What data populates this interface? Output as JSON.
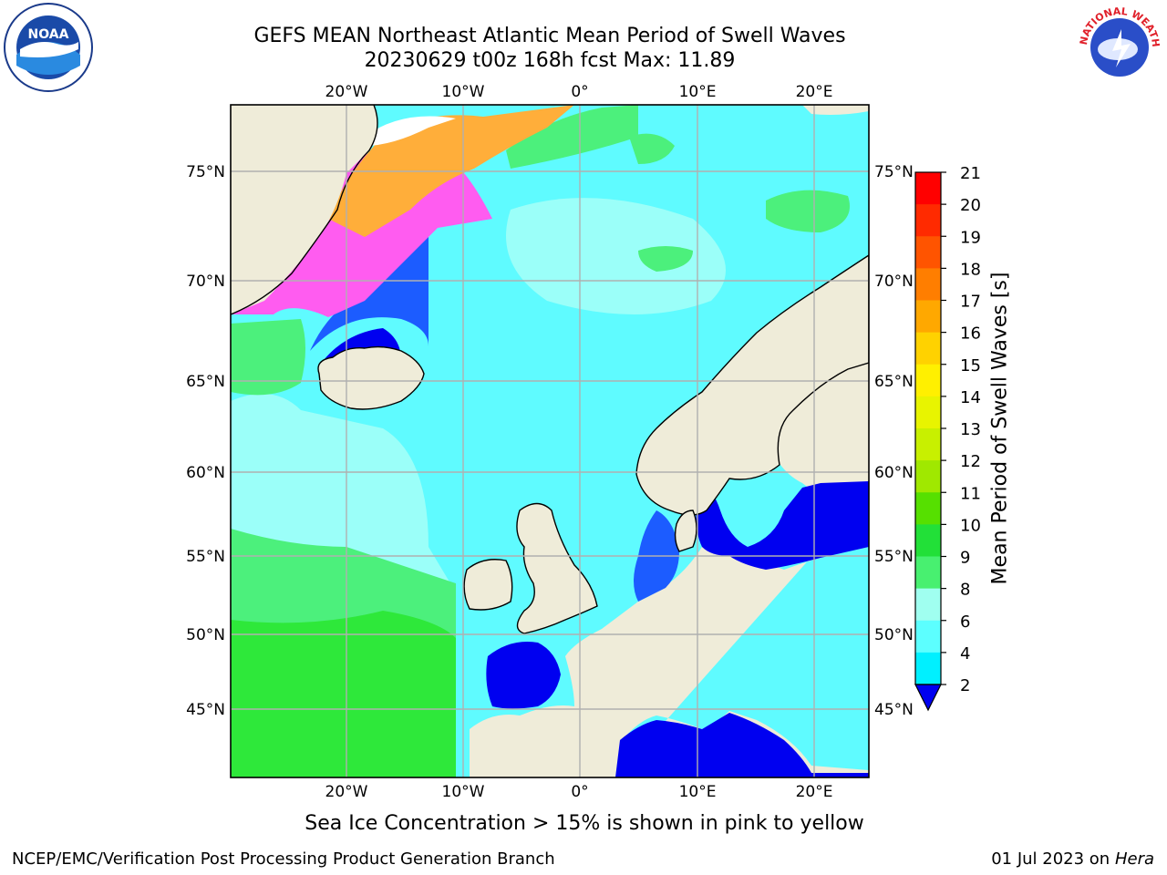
{
  "title": {
    "line1": "GEFS MEAN Northeast Atlantic Mean Period of Swell Waves",
    "line2": "20230629 t00z 168h fcst   Max: 11.89"
  },
  "caption": "Sea Ice Concentration > 15% is shown in pink to yellow",
  "footer": {
    "left": "NCEP/EMC/Verification Post Processing Product Generation Branch",
    "date": "01 Jul 2023 on",
    "machine": "Hera"
  },
  "logos": {
    "noaa": "NOAA",
    "nws": "NATIONAL WEATHER SERVICE"
  },
  "map": {
    "lon_ticks": [
      "20°W",
      "10°W",
      "0°",
      "10°E",
      "20°E"
    ],
    "lat_ticks": [
      "75°N",
      "70°N",
      "65°N",
      "60°N",
      "55°N",
      "50°N",
      "45°N"
    ],
    "colors": {
      "land": "#efecd9",
      "water_light_cyan": "#5ffbff",
      "water_pale": "#9bfff9",
      "green_light": "#4cf07c",
      "green": "#2ee83a",
      "blue": "#1c5cff",
      "deep_blue": "#0000f0",
      "ice_pink": "#ff5cf0",
      "ice_orange": "#ffae3a"
    }
  },
  "colorbar": {
    "label": "Mean Period of Swell Waves [s]",
    "ticks": [
      "21",
      "20",
      "19",
      "18",
      "17",
      "16",
      "15",
      "14",
      "13",
      "12",
      "11",
      "10",
      "9",
      "8",
      "6",
      "4",
      "2"
    ],
    "colors": [
      "#ff0000",
      "#ff2a00",
      "#ff5400",
      "#ff7e00",
      "#ffa800",
      "#ffd200",
      "#fff000",
      "#e8f400",
      "#c8f000",
      "#a0e800",
      "#56e000",
      "#22e038",
      "#48f070",
      "#a0fff0",
      "#5cffff",
      "#00f0ff",
      "#1c7cff"
    ],
    "underflow_color": "#0000f0"
  }
}
